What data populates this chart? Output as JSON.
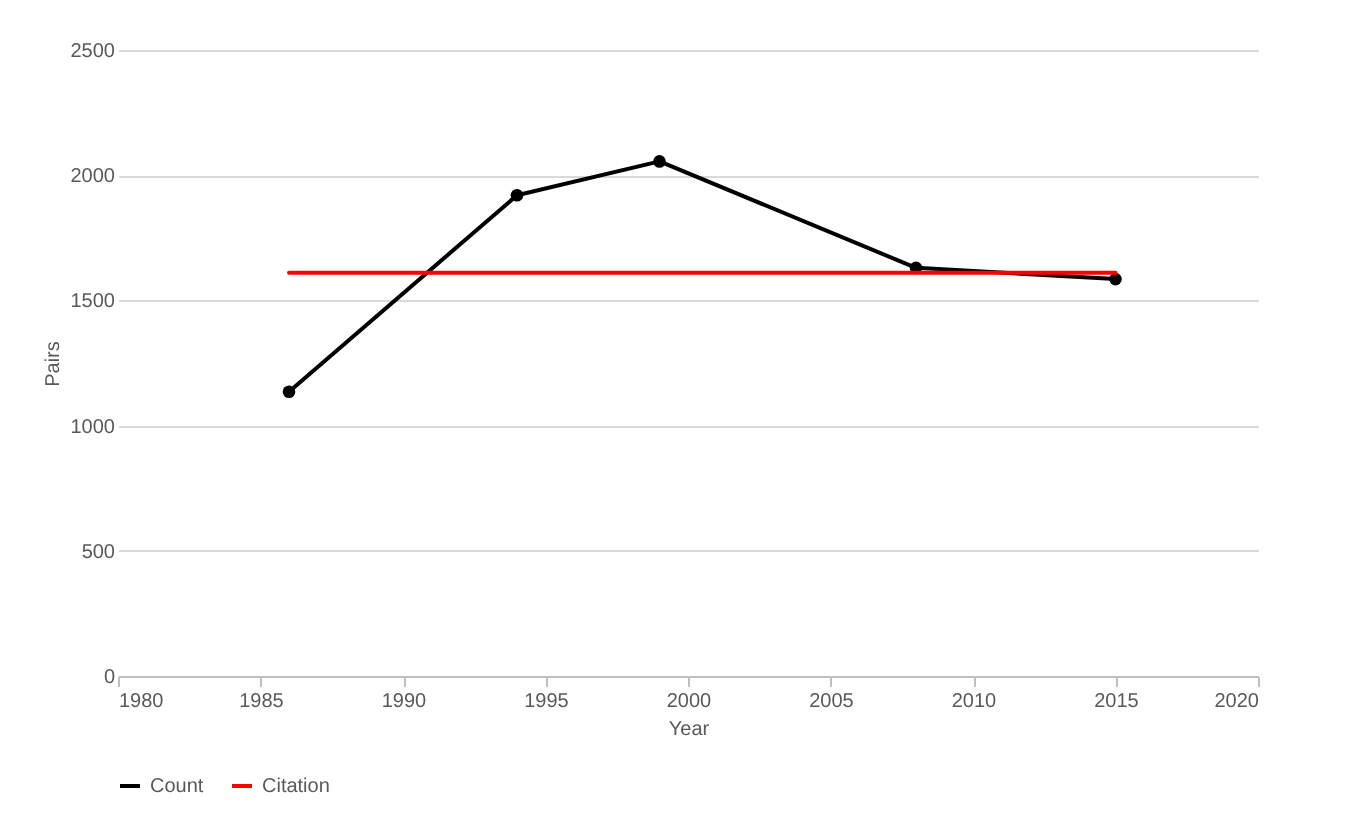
{
  "chart_data": {
    "type": "line",
    "xlabel": "Year",
    "ylabel": "Pairs",
    "xlim": [
      1980,
      2020
    ],
    "xticks": [
      1980,
      1985,
      1990,
      1995,
      2000,
      2005,
      2010,
      2015,
      2020
    ],
    "ylim": [
      0,
      2500
    ],
    "yticks": [
      0,
      500,
      1000,
      1500,
      2000,
      2500
    ],
    "grid": "y",
    "legend": "bottom",
    "series": [
      {
        "name": "Count",
        "color": "#000000",
        "marker": "circle",
        "x": [
          1986,
          1994,
          1999,
          2008,
          2015
        ],
        "values": [
          1135,
          1920,
          2055,
          1630,
          1585
        ]
      },
      {
        "name": "Citation",
        "color": "#ff0000",
        "marker": "none",
        "x": [
          1986,
          2015
        ],
        "values": [
          1610,
          1610
        ]
      }
    ]
  }
}
